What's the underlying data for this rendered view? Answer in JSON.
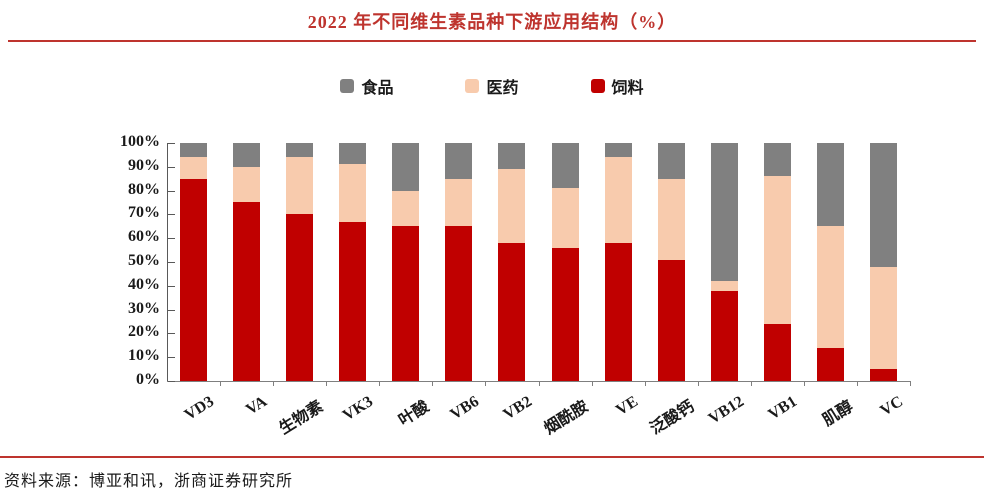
{
  "title": "2022 年不同维生素品种下游应用结构（%）",
  "source": "资料来源：博亚和讯，浙商证券研究所",
  "colors": {
    "title_red": "#be342e",
    "rule_red": "#be342e",
    "axis": "#595959",
    "food": "#808080",
    "pharma": "#f8cbad",
    "feed": "#c00000"
  },
  "legend": {
    "items": [
      {
        "label": "食品",
        "color_key": "food"
      },
      {
        "label": "医药",
        "color_key": "pharma"
      },
      {
        "label": "饲料",
        "color_key": "feed"
      }
    ]
  },
  "chart_data": {
    "type": "bar",
    "stacked": true,
    "title": "2022 年不同维生素品种下游应用结构（%）",
    "xlabel": "",
    "ylabel": "",
    "ylim": [
      0,
      100
    ],
    "grid": false,
    "legend_position": "top",
    "ytick_labels": [
      "100%",
      "90%",
      "80%",
      "70%",
      "60%",
      "50%",
      "40%",
      "30%",
      "20%",
      "10%",
      "0%"
    ],
    "categories": [
      "VD3",
      "VA",
      "生物素",
      "VK3",
      "叶酸",
      "VB6",
      "VB2",
      "烟酰胺",
      "VE",
      "泛酸钙",
      "VB12",
      "VB1",
      "肌醇",
      "VC"
    ],
    "series": [
      {
        "name": "食品",
        "color_key": "food",
        "values": [
          6,
          10,
          6,
          9,
          20,
          15,
          11,
          19,
          6,
          15,
          58,
          14,
          35,
          52
        ]
      },
      {
        "name": "医药",
        "color_key": "pharma",
        "values": [
          9,
          15,
          24,
          24,
          15,
          20,
          31,
          25,
          36,
          34,
          4,
          62,
          51,
          43
        ]
      },
      {
        "name": "饲料",
        "color_key": "feed",
        "values": [
          85,
          75,
          70,
          67,
          65,
          65,
          58,
          56,
          58,
          51,
          38,
          24,
          14,
          5
        ]
      }
    ]
  }
}
